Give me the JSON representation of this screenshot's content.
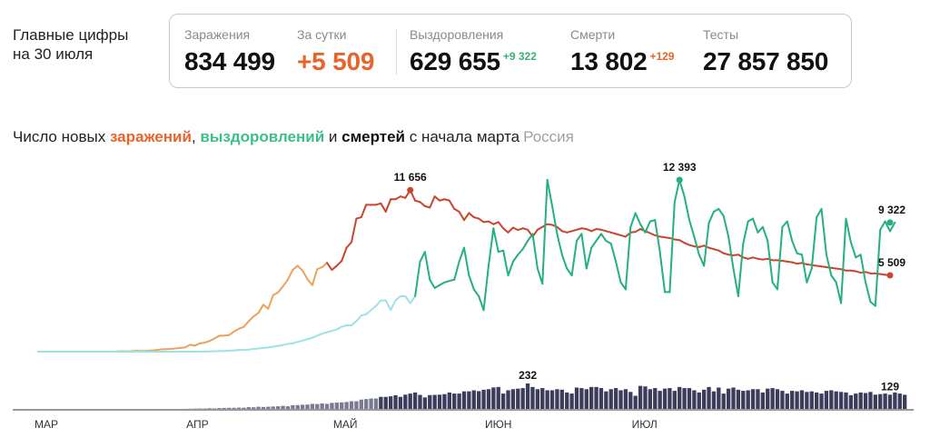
{
  "headline": {
    "line1": "Главные цифры",
    "line2": "на 30 июля"
  },
  "stats": {
    "infections": {
      "label": "Заражения",
      "value": "834 499"
    },
    "per_day": {
      "label": "За сутки",
      "value": "+5 509"
    },
    "recoveries": {
      "label": "Выздоровления",
      "value": "629 655",
      "delta": "+9 322"
    },
    "deaths": {
      "label": "Смерти",
      "value": "13 802",
      "delta": "+129"
    },
    "tests": {
      "label": "Тесты",
      "value": "27 857 850"
    }
  },
  "heading": {
    "part1": "Число новых ",
    "infections": "заражений",
    "comma": ", ",
    "recoveries": "выздоровлений",
    "and": " и ",
    "deaths": "смертей",
    "part2": " с начала марта",
    "region": "Россия"
  },
  "colors": {
    "infections": "#c9452f",
    "infections_early": "#eba25e",
    "recoveries": "#25b07e",
    "recoveries_early": "#9fe2e6",
    "deaths": "#3c3c5c",
    "deaths_light": "#c8c8d2"
  },
  "chart_data": {
    "type": "line",
    "x": {
      "start": "2020-03-01",
      "end": "2020-07-30",
      "tick_labels": [
        "МАР",
        "АПР",
        "МАЙ",
        "ИЮН",
        "ИЮЛ"
      ]
    },
    "series": [
      {
        "name": "заражений",
        "values": [
          0,
          0,
          0,
          0,
          0,
          0,
          0,
          0,
          0,
          0,
          0,
          0,
          0,
          0,
          0,
          4,
          10,
          30,
          20,
          30,
          60,
          50,
          50,
          70,
          110,
          160,
          180,
          200,
          230,
          270,
          300,
          500,
          440,
          600,
          650,
          770,
          950,
          1150,
          1160,
          1200,
          1450,
          1650,
          1790,
          2190,
          2540,
          2800,
          3390,
          3100,
          4070,
          4270,
          4710,
          5200,
          5900,
          6200,
          5850,
          5230,
          4800,
          5950,
          6100,
          6410,
          5900,
          6200,
          6550,
          7500,
          7900,
          9600,
          9700,
          10600,
          10600,
          10600,
          10700,
          10100,
          11000,
          11000,
          11200,
          11100,
          11656,
          10900,
          10800,
          10500,
          10400,
          11200,
          10900,
          11000,
          10900,
          10300,
          10100,
          9500,
          10000,
          9700,
          9600,
          9350,
          9400,
          9200,
          9350,
          8900,
          8600,
          8950,
          8780,
          8900,
          8800,
          8300,
          8800,
          9000,
          9200,
          9150,
          9000,
          8700,
          8600,
          8700,
          8800,
          8900,
          8850,
          8700,
          8850,
          8800,
          8700,
          8600,
          8500,
          8400,
          8300,
          8600,
          8650,
          8850,
          8700,
          8550,
          8400,
          8300,
          8250,
          8200,
          8100,
          8050,
          7850,
          7700,
          7600,
          7550,
          7650,
          7500,
          7400,
          7300,
          7100,
          7000,
          6950,
          7000,
          6800,
          6700,
          6800,
          6700,
          6650,
          6700,
          6600,
          6600,
          6560,
          6500,
          6450,
          6350,
          6400,
          6300,
          6250,
          6200,
          6150,
          6100,
          6050,
          6000,
          5950,
          5850,
          5850,
          5800,
          5700,
          5750,
          5650,
          5650,
          5600,
          5550,
          5509
        ]
      },
      {
        "name": "выздоровлений",
        "values": [
          0,
          0,
          0,
          0,
          0,
          0,
          0,
          0,
          0,
          0,
          0,
          0,
          0,
          0,
          0,
          0,
          0,
          0,
          0,
          0,
          0,
          0,
          0,
          0,
          0,
          0,
          0,
          0,
          0,
          0,
          0,
          0,
          0,
          0,
          10,
          20,
          30,
          40,
          50,
          70,
          90,
          120,
          120,
          150,
          200,
          230,
          280,
          300,
          360,
          420,
          480,
          560,
          600,
          700,
          800,
          900,
          1000,
          1150,
          1300,
          1400,
          1500,
          1600,
          1800,
          1900,
          1900,
          2200,
          2600,
          2700,
          3000,
          3300,
          3700,
          3700,
          3000,
          3700,
          4000,
          4000,
          3500,
          4000,
          6500,
          7200,
          5200,
          4600,
          4800,
          5000,
          5100,
          5200,
          6500,
          7500,
          5500,
          4500,
          4000,
          3000,
          6200,
          8900,
          7200,
          7300,
          5500,
          6500,
          7000,
          7400,
          8000,
          8500,
          6000,
          4900,
          12400,
          10500,
          8500,
          7000,
          6000,
          5500,
          8000,
          8500,
          6000,
          7500,
          8000,
          8500,
          8000,
          7800,
          6500,
          5000,
          4500,
          9000,
          10000,
          9200,
          8600,
          9400,
          9500,
          7200,
          4300,
          4300,
          10800,
          12393,
          11200,
          9500,
          8300,
          7000,
          6200,
          9300,
          10100,
          10300,
          9800,
          8300,
          6000,
          4000,
          7800,
          9400,
          9600,
          8600,
          9000,
          8000,
          5000,
          4500,
          9000,
          9400,
          8000,
          7100,
          7000,
          5000,
          6000,
          9700,
          10300,
          7000,
          5500,
          5000,
          3500,
          9600,
          7900,
          6800,
          7000,
          5000,
          3600,
          3300,
          8800,
          9400,
          8700,
          9322
        ]
      },
      {
        "name": "смертей",
        "values": [
          0,
          0,
          0,
          0,
          0,
          0,
          0,
          0,
          0,
          0,
          0,
          0,
          0,
          0,
          0,
          0,
          0,
          0,
          0,
          0,
          0,
          0,
          0,
          0,
          0,
          0,
          0,
          0,
          0,
          0,
          1,
          2,
          3,
          4,
          4,
          6,
          5,
          8,
          9,
          10,
          10,
          12,
          11,
          16,
          15,
          20,
          18,
          20,
          22,
          24,
          28,
          24,
          34,
          35,
          38,
          40,
          46,
          44,
          50,
          46,
          55,
          58,
          60,
          63,
          70,
          70,
          85,
          90,
          95,
          95,
          110,
          110,
          115,
          125,
          110,
          130,
          140,
          150,
          128,
          105,
          126,
          128,
          130,
          135,
          150,
          140,
          140,
          160,
          160,
          170,
          162,
          175,
          180,
          196,
          200,
          140,
          170,
          180,
          185,
          190,
          232,
          200,
          180,
          190,
          170,
          170,
          180,
          175,
          150,
          140,
          195,
          190,
          180,
          200,
          200,
          190,
          160,
          180,
          190,
          170,
          180,
          155,
          120,
          210,
          205,
          180,
          190,
          165,
          185,
          190,
          165,
          200,
          190,
          190,
          170,
          150,
          175,
          200,
          160,
          195,
          140,
          185,
          195,
          175,
          165,
          170,
          180,
          180,
          150,
          185,
          190,
          180,
          165,
          140,
          165,
          160,
          170,
          155,
          160,
          150,
          140,
          165,
          170,
          160,
          155,
          150,
          125,
          140,
          150,
          145,
          155,
          130,
          135,
          140,
          130,
          150,
          140,
          129
        ]
      }
    ],
    "annotations": [
      {
        "series": "заражений",
        "label": "11 656",
        "value": 11656
      },
      {
        "series": "выздоровлений",
        "label": "12 393",
        "value": 12393
      },
      {
        "series": "выздоровлений",
        "label": "9 322",
        "value": 9322
      },
      {
        "series": "заражений",
        "label": "5 509",
        "value": 5509
      },
      {
        "series": "смертей",
        "label": "232",
        "value": 232
      },
      {
        "series": "смертей",
        "label": "129",
        "value": 129
      }
    ],
    "ylim": [
      0,
      12393
    ],
    "deaths_ylim": [
      0,
      232
    ],
    "grid": false,
    "legend": "none"
  }
}
